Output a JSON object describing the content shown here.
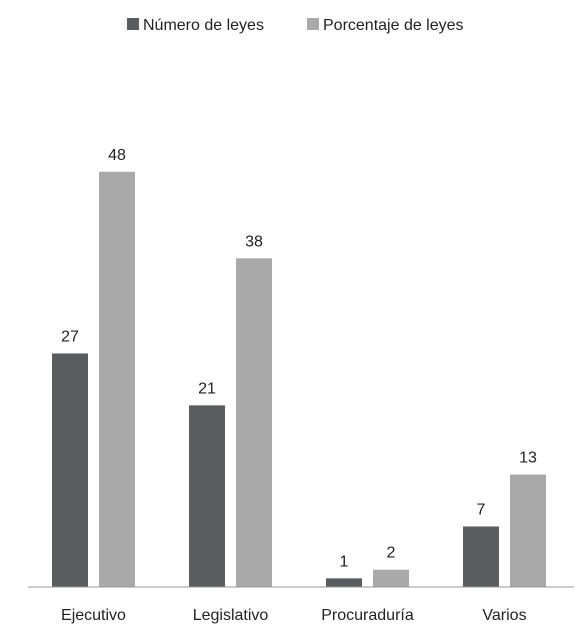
{
  "chart_data": {
    "type": "bar",
    "title": "",
    "xlabel": "",
    "ylabel": "",
    "ylim": [
      0,
      50
    ],
    "grid": false,
    "legend_position": "top-center",
    "categories": [
      "Ejecutivo",
      "Legislativo",
      "Procuraduría",
      "Varios"
    ],
    "series": [
      {
        "name": "Número de leyes",
        "color": "#595d60",
        "values": [
          27,
          21,
          1,
          7
        ]
      },
      {
        "name": "Porcentaje de leyes",
        "color": "#a9a9a9",
        "values": [
          48,
          38,
          2,
          13
        ]
      }
    ]
  }
}
